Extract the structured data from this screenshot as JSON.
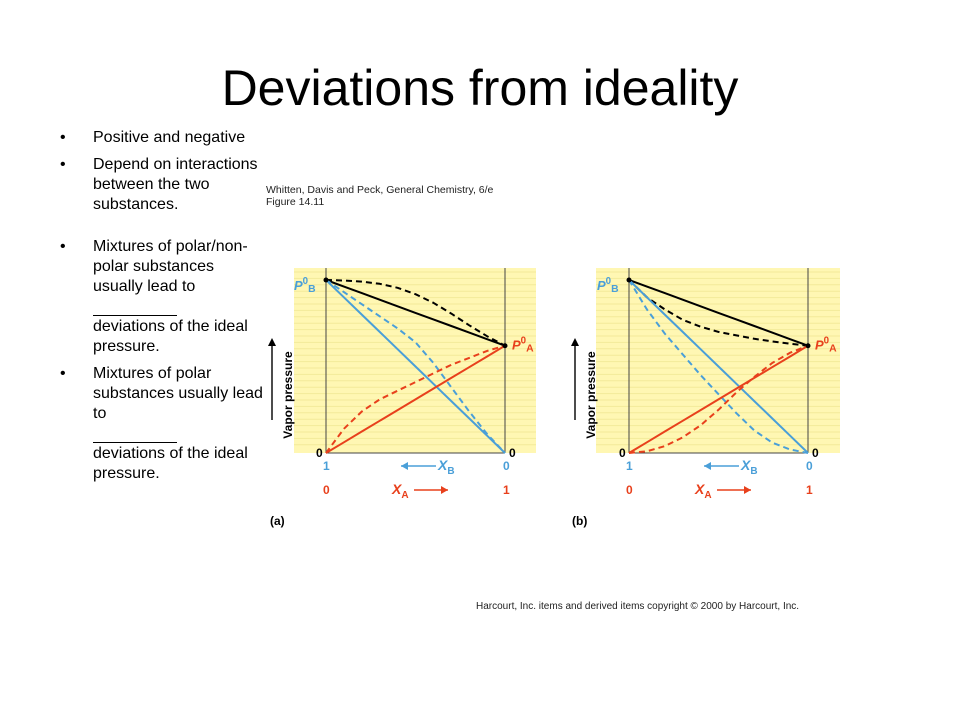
{
  "title": "Deviations from ideality",
  "bullets": [
    {
      "text": "Positive and negative"
    },
    {
      "text": "Depend on interactions between the two substances."
    },
    {
      "pre": "Mixtures of polar/non-polar substances usually lead to",
      "post": "deviations of the ideal pressure."
    },
    {
      "pre": "Mixtures of polar substances usually lead to",
      "post": "deviations of the ideal pressure."
    }
  ],
  "caption": {
    "line1": "Whitten, Davis and Peck, General Chemistry, 6/e",
    "line2": "Figure 14.11"
  },
  "copyright": "Harcourt, Inc. items and derived items copyright © 2000 by Harcourt, Inc.",
  "colors": {
    "panel_bg": "#fff7b3",
    "total_pressure": "#000000",
    "component_B": "#4a9fd8",
    "component_A": "#e8401c",
    "frame": "#444444"
  },
  "chart_data": [
    {
      "type": "line",
      "panel_label": "(a)",
      "ylabel": "Vapor pressure",
      "x_axis_label_B": "X",
      "x_axis_sub_B": "B",
      "x_axis_label_A": "X",
      "x_axis_sub_A": "A",
      "x_ticks_B": [
        "1",
        "0"
      ],
      "x_ticks_A": [
        "0",
        "1"
      ],
      "y_zero_labels": [
        "0",
        "0"
      ],
      "left_top_label": {
        "main": "P",
        "sup": "0",
        "sub": "B"
      },
      "right_label": {
        "main": "P",
        "sup": "0",
        "sub": "A"
      },
      "x_A": [
        0,
        0.1,
        0.2,
        0.3,
        0.4,
        0.5,
        0.6,
        0.7,
        0.8,
        0.9,
        1
      ],
      "P0_B": 1.0,
      "P0_A": 0.62,
      "series": [
        {
          "role": "total-ideal",
          "style": "solid",
          "color": "#000000",
          "y": [
            1.0,
            0.962,
            0.924,
            0.886,
            0.848,
            0.81,
            0.772,
            0.734,
            0.696,
            0.658,
            0.62
          ]
        },
        {
          "role": "total-real",
          "style": "dashed",
          "color": "#000000",
          "y": [
            1.0,
            0.997,
            0.991,
            0.978,
            0.955,
            0.918,
            0.868,
            0.806,
            0.738,
            0.675,
            0.62
          ]
        },
        {
          "role": "B-ideal",
          "style": "solid",
          "color": "#4a9fd8",
          "y": [
            1.0,
            0.9,
            0.8,
            0.7,
            0.6,
            0.5,
            0.4,
            0.3,
            0.2,
            0.1,
            0.0
          ]
        },
        {
          "role": "B-real",
          "style": "dashed",
          "color": "#4a9fd8",
          "y": [
            1.0,
            0.93,
            0.86,
            0.79,
            0.72,
            0.64,
            0.52,
            0.38,
            0.24,
            0.11,
            0.0
          ]
        },
        {
          "role": "A-ideal",
          "style": "solid",
          "color": "#e8401c",
          "y": [
            0.0,
            0.062,
            0.124,
            0.186,
            0.248,
            0.31,
            0.372,
            0.434,
            0.496,
            0.558,
            0.62
          ]
        },
        {
          "role": "A-real",
          "style": "dashed",
          "color": "#e8401c",
          "y": [
            0.0,
            0.14,
            0.24,
            0.31,
            0.36,
            0.41,
            0.46,
            0.51,
            0.55,
            0.59,
            0.62
          ]
        }
      ]
    },
    {
      "type": "line",
      "panel_label": "(b)",
      "ylabel": "Vapor pressure",
      "x_axis_label_B": "X",
      "x_axis_sub_B": "B",
      "x_axis_label_A": "X",
      "x_axis_sub_A": "A",
      "x_ticks_B": [
        "1",
        "0"
      ],
      "x_ticks_A": [
        "0",
        "1"
      ],
      "y_zero_labels": [
        "0",
        "0"
      ],
      "left_top_label": {
        "main": "P",
        "sup": "0",
        "sub": "B"
      },
      "right_label": {
        "main": "P",
        "sup": "0",
        "sub": "A"
      },
      "x_A": [
        0,
        0.1,
        0.2,
        0.3,
        0.4,
        0.5,
        0.6,
        0.7,
        0.8,
        0.9,
        1
      ],
      "P0_B": 1.0,
      "P0_A": 0.62,
      "series": [
        {
          "role": "total-ideal",
          "style": "solid",
          "color": "#000000",
          "y": [
            1.0,
            0.962,
            0.924,
            0.886,
            0.848,
            0.81,
            0.772,
            0.734,
            0.696,
            0.658,
            0.62
          ]
        },
        {
          "role": "total-real",
          "style": "dashed",
          "color": "#000000",
          "y": [
            1.0,
            0.9,
            0.83,
            0.77,
            0.73,
            0.7,
            0.68,
            0.66,
            0.645,
            0.632,
            0.62
          ]
        },
        {
          "role": "B-ideal",
          "style": "solid",
          "color": "#4a9fd8",
          "y": [
            1.0,
            0.9,
            0.8,
            0.7,
            0.6,
            0.5,
            0.4,
            0.3,
            0.2,
            0.1,
            0.0
          ]
        },
        {
          "role": "B-real",
          "style": "dashed",
          "color": "#4a9fd8",
          "y": [
            1.0,
            0.83,
            0.69,
            0.57,
            0.45,
            0.34,
            0.23,
            0.13,
            0.06,
            0.02,
            0.0
          ]
        },
        {
          "role": "A-ideal",
          "style": "solid",
          "color": "#e8401c",
          "y": [
            0.0,
            0.062,
            0.124,
            0.186,
            0.248,
            0.31,
            0.372,
            0.434,
            0.496,
            0.558,
            0.62
          ]
        },
        {
          "role": "A-real",
          "style": "dashed",
          "color": "#e8401c",
          "y": [
            0.0,
            0.01,
            0.04,
            0.09,
            0.16,
            0.25,
            0.35,
            0.44,
            0.52,
            0.58,
            0.62
          ]
        }
      ]
    }
  ]
}
